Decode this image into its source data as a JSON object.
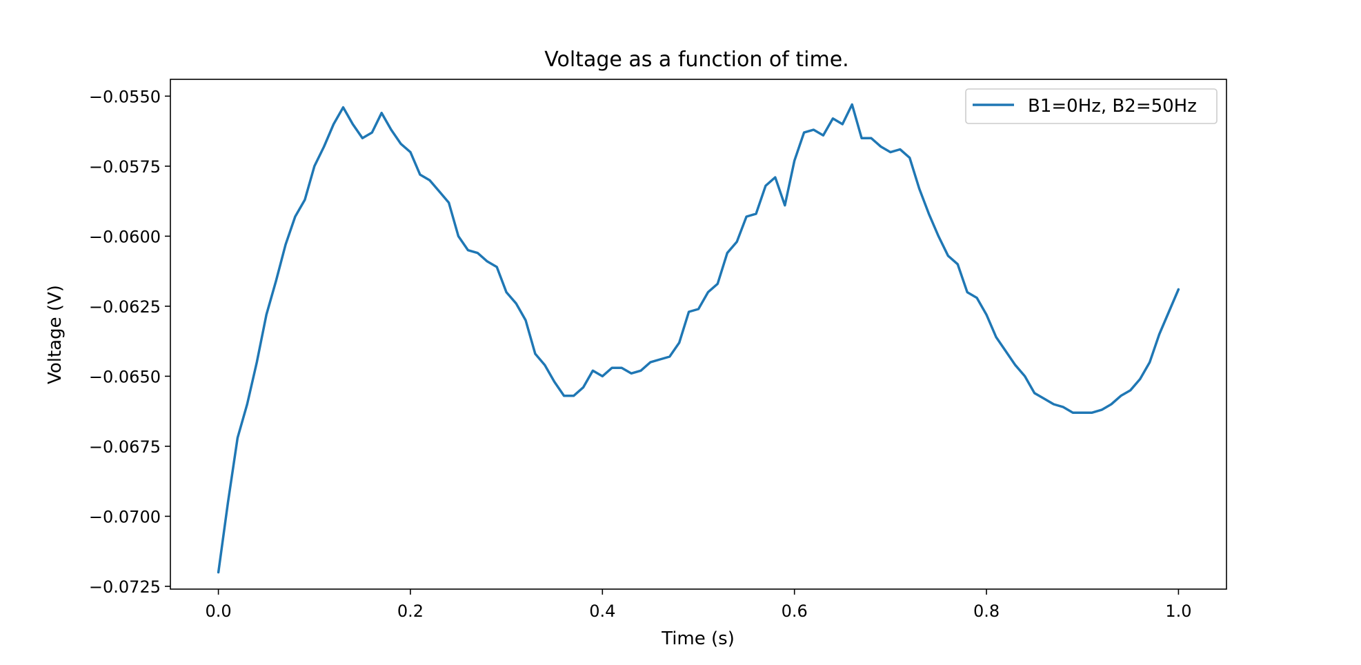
{
  "chart_data": {
    "type": "line",
    "title": "Voltage as a function of time.",
    "xlabel": "Time (s)",
    "ylabel": "Voltage (V)",
    "xlim": [
      -0.05,
      1.05
    ],
    "ylim": [
      -0.0726,
      -0.0544
    ],
    "x_ticks": [
      0.0,
      0.2,
      0.4,
      0.6,
      0.8,
      1.0
    ],
    "x_tick_labels": [
      "0.0",
      "0.2",
      "0.4",
      "0.6",
      "0.8",
      "1.0"
    ],
    "y_ticks": [
      -0.055,
      -0.0575,
      -0.06,
      -0.0625,
      -0.065,
      -0.0675,
      -0.07,
      -0.0725
    ],
    "y_tick_labels": [
      "−0.0550",
      "−0.0575",
      "−0.0600",
      "−0.0625",
      "−0.0650",
      "−0.0675",
      "−0.0700",
      "−0.0725"
    ],
    "grid": false,
    "legend_position": "top-right",
    "series": [
      {
        "name": "B1=0Hz, B2=50Hz",
        "color": "#1f77b4",
        "x": [
          0.0,
          0.01,
          0.02,
          0.03,
          0.04,
          0.05,
          0.06,
          0.07,
          0.08,
          0.09,
          0.1,
          0.11,
          0.12,
          0.13,
          0.14,
          0.15,
          0.16,
          0.17,
          0.18,
          0.19,
          0.2,
          0.21,
          0.22,
          0.23,
          0.24,
          0.25,
          0.26,
          0.27,
          0.28,
          0.29,
          0.3,
          0.31,
          0.32,
          0.33,
          0.34,
          0.35,
          0.36,
          0.37,
          0.38,
          0.39,
          0.4,
          0.41,
          0.42,
          0.43,
          0.44,
          0.45,
          0.46,
          0.47,
          0.48,
          0.49,
          0.5,
          0.51,
          0.52,
          0.53,
          0.54,
          0.55,
          0.56,
          0.57,
          0.58,
          0.59,
          0.6,
          0.61,
          0.62,
          0.63,
          0.64,
          0.65,
          0.66,
          0.67,
          0.68,
          0.69,
          0.7,
          0.71,
          0.72,
          0.73,
          0.74,
          0.75,
          0.76,
          0.77,
          0.78,
          0.79,
          0.8,
          0.81,
          0.82,
          0.83,
          0.84,
          0.85,
          0.86,
          0.87,
          0.88,
          0.89,
          0.9,
          0.91,
          0.92,
          0.93,
          0.94,
          0.95,
          0.96,
          0.97,
          0.98,
          0.99,
          1.0
        ],
        "values": [
          -0.072,
          -0.0695,
          -0.0672,
          -0.066,
          -0.0645,
          -0.0628,
          -0.0616,
          -0.0603,
          -0.0593,
          -0.0587,
          -0.0575,
          -0.0568,
          -0.056,
          -0.0554,
          -0.056,
          -0.0565,
          -0.0563,
          -0.0556,
          -0.0562,
          -0.0567,
          -0.057,
          -0.0578,
          -0.058,
          -0.0584,
          -0.0588,
          -0.06,
          -0.0605,
          -0.0606,
          -0.0609,
          -0.0611,
          -0.062,
          -0.0624,
          -0.063,
          -0.0642,
          -0.0646,
          -0.0652,
          -0.0657,
          -0.0657,
          -0.0654,
          -0.0648,
          -0.065,
          -0.0647,
          -0.0647,
          -0.0649,
          -0.0648,
          -0.0645,
          -0.0644,
          -0.0643,
          -0.0638,
          -0.0627,
          -0.0626,
          -0.062,
          -0.0617,
          -0.0606,
          -0.0602,
          -0.0593,
          -0.0592,
          -0.0582,
          -0.0579,
          -0.0589,
          -0.0573,
          -0.0563,
          -0.0562,
          -0.0564,
          -0.0558,
          -0.056,
          -0.0553,
          -0.0565,
          -0.0565,
          -0.0568,
          -0.057,
          -0.0569,
          -0.0572,
          -0.0583,
          -0.0592,
          -0.06,
          -0.0607,
          -0.061,
          -0.062,
          -0.0622,
          -0.0628,
          -0.0636,
          -0.0641,
          -0.0646,
          -0.065,
          -0.0656,
          -0.0658,
          -0.066,
          -0.0661,
          -0.0663,
          -0.0663,
          -0.0663,
          -0.0662,
          -0.066,
          -0.0657,
          -0.0655,
          -0.0651,
          -0.0645,
          -0.0635,
          -0.0627,
          -0.0619
        ]
      }
    ]
  }
}
